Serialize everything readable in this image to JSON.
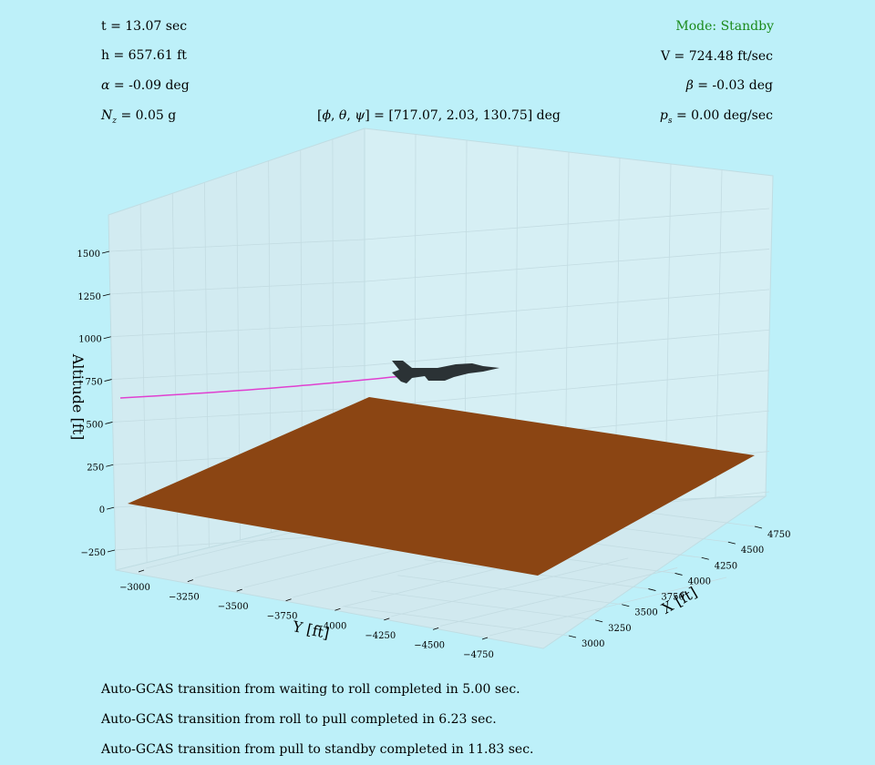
{
  "hud": {
    "time": "t = 13.07 sec",
    "altitude": "h = 657.61 ft",
    "alpha_value": "= -0.09 deg",
    "nz_value": "= 0.05 g",
    "mode": "Mode: Standby",
    "velocity": "V = 724.48 ft/sec",
    "beta_value": "= -0.03 deg",
    "ps_value": "= 0.00 deg/sec",
    "euler_value": "= [717.07, 2.03, 130.75] deg"
  },
  "log": [
    "Auto-GCAS transition from waiting to roll completed in 5.00 sec.",
    "Auto-GCAS transition from roll to pull completed in 6.23 sec.",
    "Auto-GCAS transition from pull to standby completed in 11.83 sec."
  ],
  "colors": {
    "background": "#bdf0f9",
    "pane": "#d4eef3",
    "ground": "#8b4513",
    "trajectory": "#e040d0",
    "aircraft": "#2b3235",
    "mode_text": "#1a8a1a"
  },
  "chart_data": {
    "type": "line",
    "projection": "3d",
    "xlabel": "X [ft]",
    "ylabel": "Y [ft]",
    "zlabel": "Altitude [ft]",
    "x_ticks": [
      "3000",
      "3250",
      "3500",
      "3750",
      "4000",
      "4250",
      "4500",
      "4750"
    ],
    "y_ticks": [
      "−3000",
      "−3250",
      "−3500",
      "−3750",
      "−4000",
      "−4250",
      "−4500",
      "−4750"
    ],
    "z_ticks": [
      "−250",
      "0",
      "250",
      "500",
      "750",
      "1000",
      "1250",
      "1500"
    ],
    "ground_altitude": 0,
    "trajectory": {
      "x": [
        4000,
        4150,
        4300,
        4450,
        4600,
        4750,
        4900
      ],
      "y": [
        -3100,
        -3350,
        -3600,
        -3850,
        -4100,
        -4350,
        -4550
      ],
      "z": [
        1000,
        910,
        830,
        760,
        710,
        680,
        658
      ]
    },
    "grid": true
  }
}
